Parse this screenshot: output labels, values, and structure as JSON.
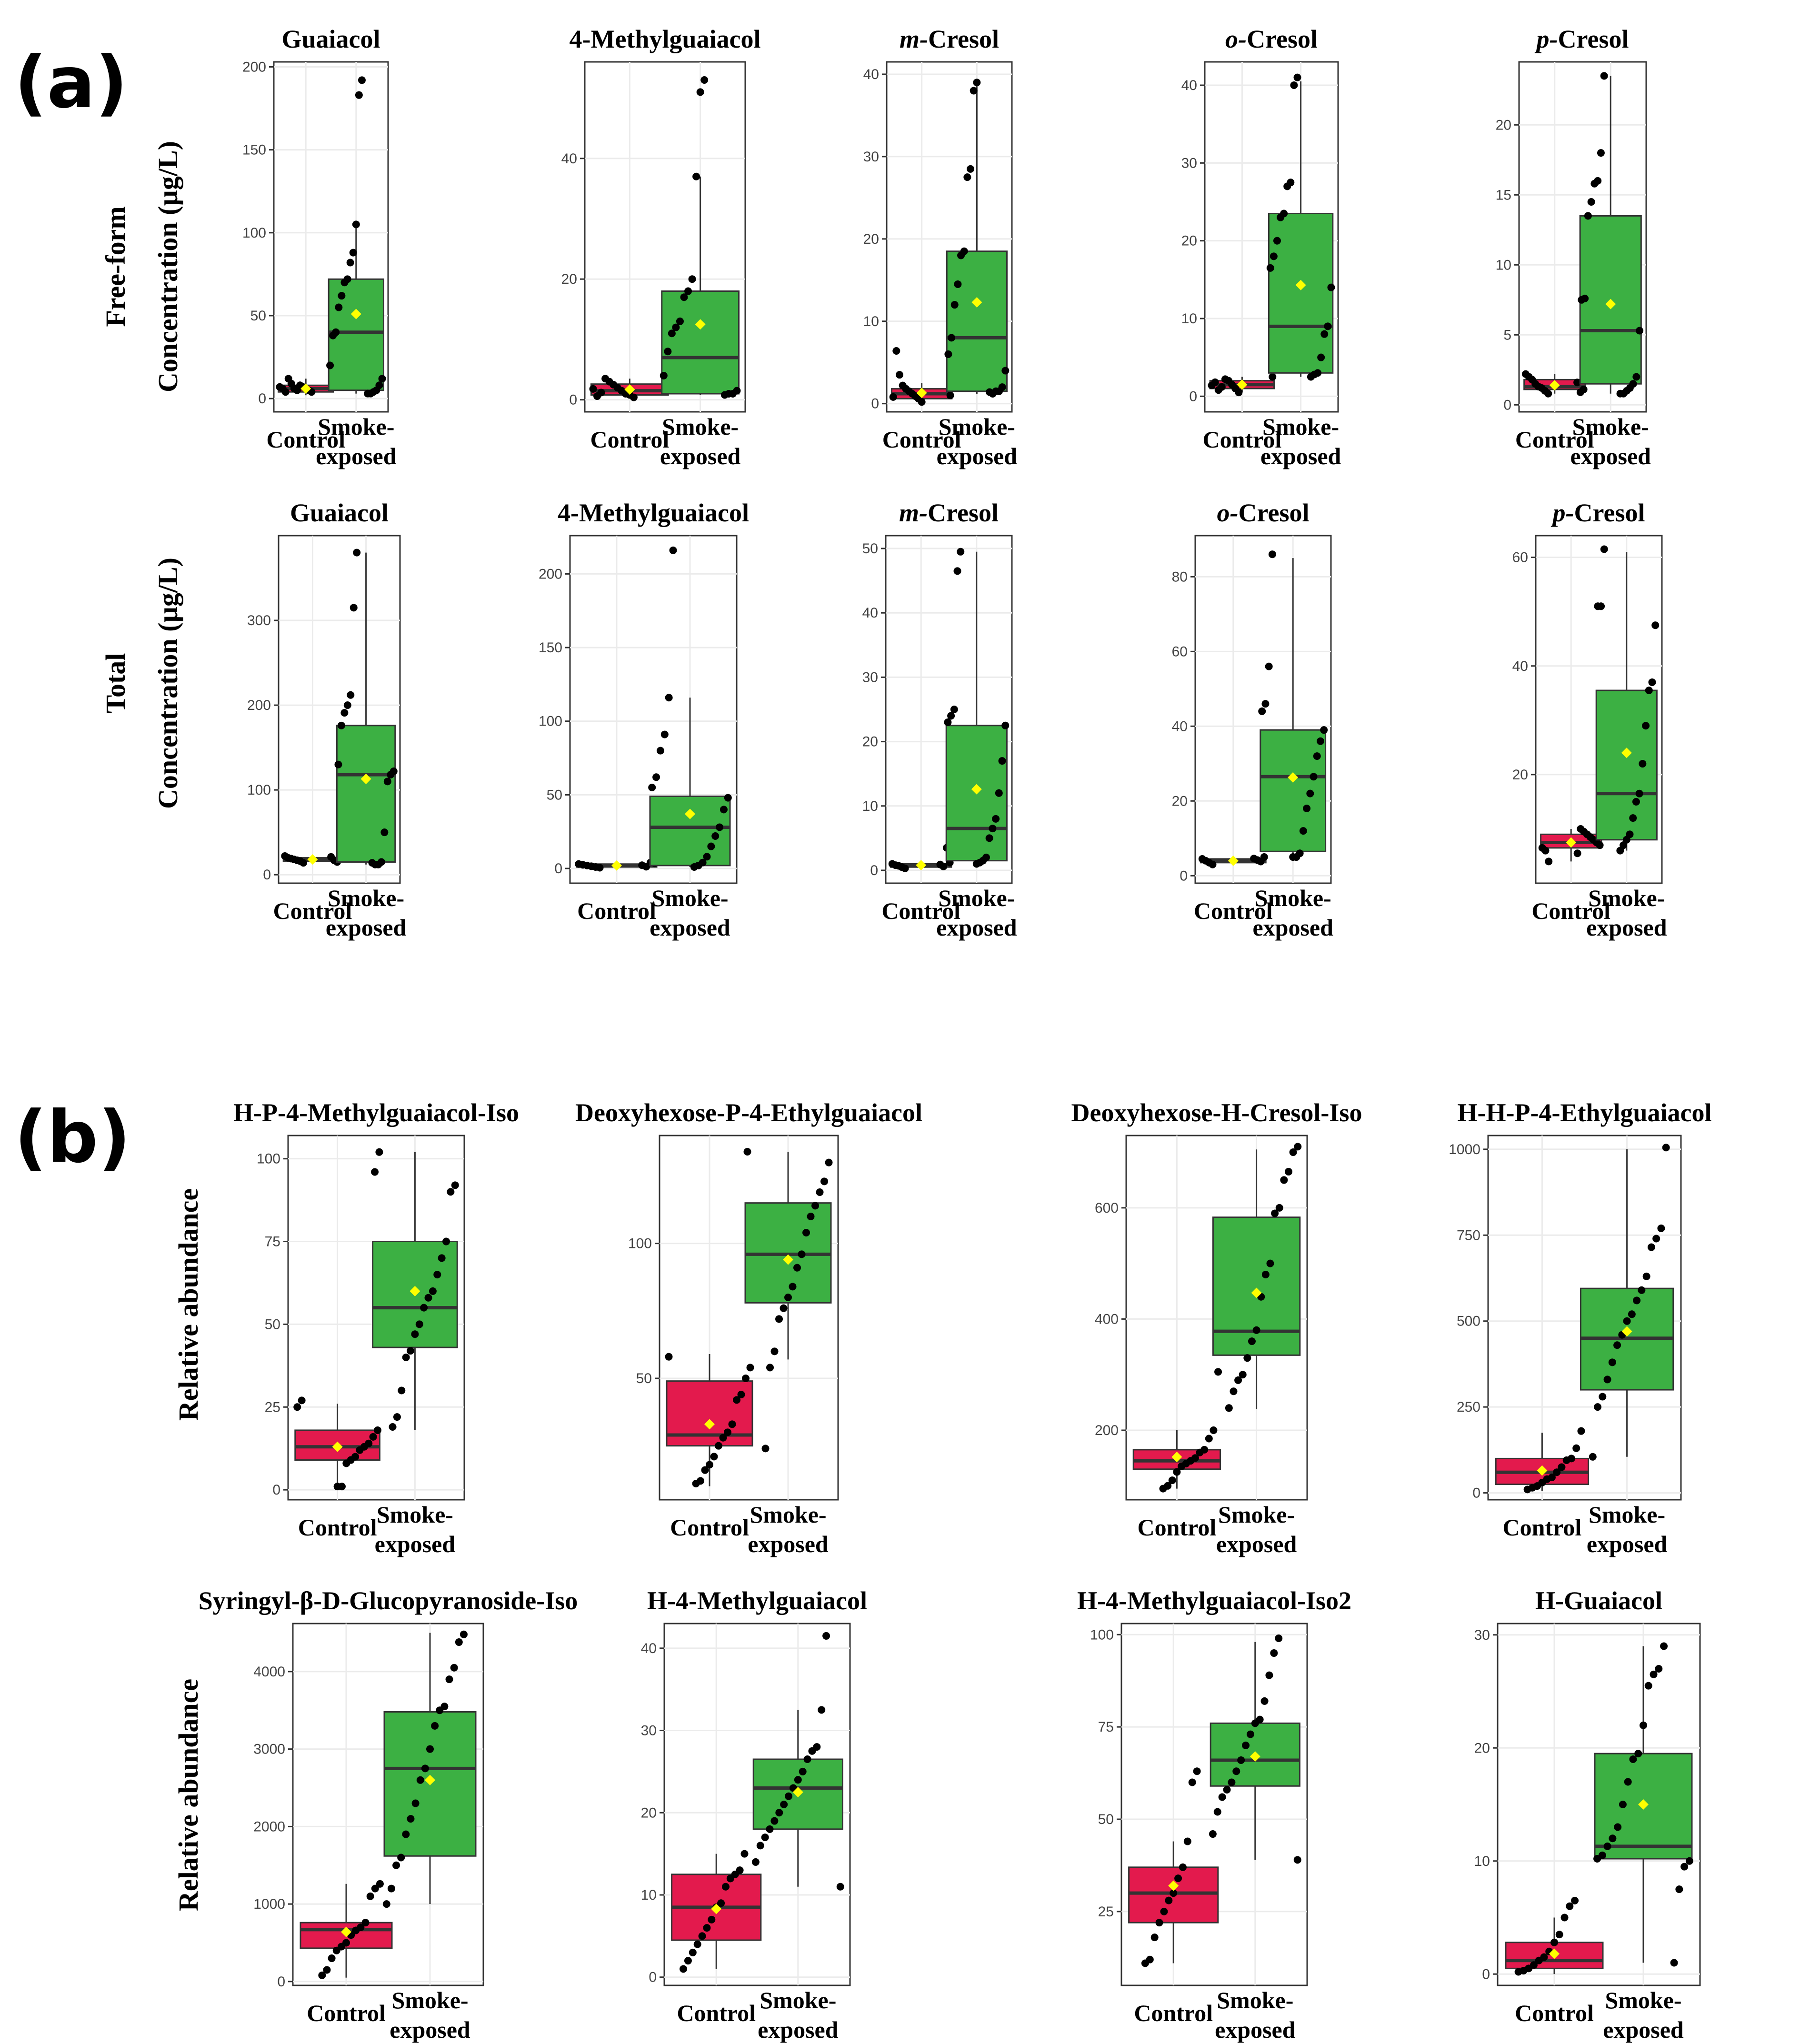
{
  "panels": [
    {
      "label": "(a)"
    },
    {
      "label": "(b)"
    }
  ],
  "row_labels": [
    {
      "line1": "Free-form",
      "line2": "Concentration (µg/L)"
    },
    {
      "line1": "Total",
      "line2": "Concentration (µg/L)"
    },
    {
      "line1": "Relative abundance"
    },
    {
      "line1": "Relative abundance"
    }
  ],
  "group_labels": {
    "control": "Control",
    "smoke_line1": "Smoke-",
    "smoke_line2": "exposed"
  },
  "colors": {
    "control": "#e31a4d",
    "smoke": "#3cb043",
    "mean": "#ffff00",
    "grid": "#ebebeb",
    "point": "#000000"
  },
  "chart_data": [
    {
      "type": "box",
      "panel": "a",
      "title": "Guaiacol",
      "title_prefix": "",
      "yticks": [
        0,
        50,
        100,
        150,
        200
      ],
      "ylim": [
        -8,
        203
      ],
      "control": {
        "q1": 4,
        "median": 6,
        "q3": 8,
        "whisker_low": 2,
        "whisker_high": 12,
        "mean": 6,
        "points": [
          4,
          5,
          6,
          7,
          8,
          5,
          6,
          9,
          12,
          4,
          6,
          7
        ]
      },
      "smoke": {
        "q1": 5,
        "median": 40,
        "q3": 72,
        "whisker_low": 3,
        "whisker_high": 105,
        "mean": 51,
        "points": [
          192,
          183,
          105,
          88,
          82,
          72,
          70,
          62,
          55,
          40,
          38,
          20,
          12,
          8,
          5,
          4,
          3,
          3
        ]
      }
    },
    {
      "type": "box",
      "panel": "a",
      "title": "4-Methylguaiacol",
      "title_prefix": "",
      "yticks": [
        0,
        20,
        40
      ],
      "ylim": [
        -2,
        56
      ],
      "control": {
        "q1": 0.8,
        "median": 1.5,
        "q3": 2.6,
        "whisker_low": 0.4,
        "whisker_high": 3.5,
        "mean": 1.7,
        "points": [
          0.4,
          0.8,
          1.0,
          1.5,
          2.0,
          2.5,
          3.0,
          3.5,
          1.2,
          0.6,
          1.8
        ]
      },
      "smoke": {
        "q1": 1,
        "median": 7,
        "q3": 18,
        "whisker_low": 0.8,
        "whisker_high": 37,
        "mean": 12.5,
        "points": [
          53,
          51,
          37,
          20,
          18,
          17,
          13,
          12,
          11,
          8,
          4,
          1.5,
          1,
          1,
          0.8
        ]
      }
    },
    {
      "type": "box",
      "panel": "a",
      "title": "Cresol",
      "title_prefix": "m-",
      "yticks": [
        0,
        10,
        20,
        30,
        40
      ],
      "ylim": [
        -1,
        41.5
      ],
      "control": {
        "q1": 0.6,
        "median": 1.2,
        "q3": 1.8,
        "whisker_low": 0.2,
        "whisker_high": 2.5,
        "mean": 1.3,
        "points": [
          0.2,
          0.6,
          0.9,
          1.2,
          1.5,
          1.8,
          2.2,
          3.5,
          6.4,
          0.8,
          1.0
        ]
      },
      "smoke": {
        "q1": 1.5,
        "median": 8,
        "q3": 18.5,
        "whisker_low": 1.2,
        "whisker_high": 39,
        "mean": 12.3,
        "points": [
          39,
          38,
          28.5,
          27.5,
          18.5,
          18,
          14.5,
          12,
          8,
          6,
          4,
          2,
          1.5,
          1.5,
          1.2,
          1.4
        ]
      }
    },
    {
      "type": "box",
      "panel": "a",
      "title": "Cresol",
      "title_prefix": "o-",
      "yticks": [
        0,
        10,
        20,
        30,
        40
      ],
      "ylim": [
        -2,
        43
      ],
      "control": {
        "q1": 1,
        "median": 1.5,
        "q3": 2,
        "whisker_low": 0.5,
        "whisker_high": 2.5,
        "mean": 1.5,
        "points": [
          0.5,
          1.0,
          1.5,
          2.0,
          2.2,
          1.2,
          0.8,
          1.8,
          1.4,
          2.5
        ]
      },
      "smoke": {
        "q1": 3,
        "median": 9,
        "q3": 23.5,
        "whisker_low": 2.5,
        "whisker_high": 40.5,
        "mean": 14.3,
        "points": [
          41,
          40,
          27.5,
          27,
          23.5,
          23,
          20,
          18,
          16.5,
          14,
          9,
          8,
          5,
          3,
          2.8,
          2.5
        ]
      }
    },
    {
      "type": "box",
      "panel": "a",
      "title": "Cresol",
      "title_prefix": "p-",
      "yticks": [
        0,
        5,
        10,
        15,
        20
      ],
      "ylim": [
        -0.5,
        24.5
      ],
      "control": {
        "q1": 1.1,
        "median": 1.3,
        "q3": 1.8,
        "whisker_low": 0.8,
        "whisker_high": 2.2,
        "mean": 1.4,
        "points": [
          0.8,
          1.0,
          1.2,
          1.3,
          1.5,
          1.8,
          2.0,
          2.2,
          1.1,
          0.9,
          1.6
        ]
      },
      "smoke": {
        "q1": 1.5,
        "median": 5.3,
        "q3": 13.5,
        "whisker_low": 0.8,
        "whisker_high": 23.5,
        "mean": 7.2,
        "points": [
          23.5,
          18,
          16,
          15.8,
          14.5,
          13.5,
          7.6,
          7.5,
          5.3,
          2,
          1.5,
          1.2,
          1,
          0.8,
          0.8
        ]
      }
    },
    {
      "type": "box",
      "panel": "a",
      "title": "Guaiacol",
      "title_prefix": "",
      "yticks": [
        0,
        100,
        200,
        300
      ],
      "ylim": [
        -10,
        400
      ],
      "control": {
        "q1": 16,
        "median": 18,
        "q3": 20,
        "whisker_low": 14,
        "whisker_high": 23,
        "mean": 18,
        "points": [
          14,
          16,
          17,
          18,
          19,
          20,
          22,
          23,
          15,
          17,
          21
        ]
      },
      "smoke": {
        "q1": 15,
        "median": 118,
        "q3": 176,
        "whisker_low": 12,
        "whisker_high": 380,
        "mean": 113,
        "points": [
          380,
          315,
          212,
          200,
          191,
          176,
          130,
          122,
          118,
          110,
          50,
          15,
          12,
          12,
          14
        ]
      }
    },
    {
      "type": "box",
      "panel": "a",
      "title": "4-Methylguaiacol",
      "title_prefix": "",
      "yticks": [
        0,
        50,
        100,
        150,
        200
      ],
      "ylim": [
        -10,
        226
      ],
      "control": {
        "q1": 1,
        "median": 2,
        "q3": 3,
        "whisker_low": 0.5,
        "whisker_high": 4,
        "mean": 2,
        "points": [
          0.5,
          1,
          1.5,
          2,
          2.5,
          3,
          3.5,
          4,
          1.2,
          2.2
        ]
      },
      "smoke": {
        "q1": 2,
        "median": 28,
        "q3": 49,
        "whisker_low": 1,
        "whisker_high": 116,
        "mean": 37,
        "points": [
          216,
          116,
          91,
          80,
          62,
          55,
          48,
          40,
          28,
          22,
          15,
          8,
          4,
          2,
          1
        ]
      }
    },
    {
      "type": "box",
      "panel": "a",
      "title": "Cresol",
      "title_prefix": "m-",
      "yticks": [
        0,
        10,
        20,
        30,
        40,
        50
      ],
      "ylim": [
        -2,
        52
      ],
      "control": {
        "q1": 0.5,
        "median": 0.8,
        "q3": 1,
        "whisker_low": 0.3,
        "whisker_high": 1.2,
        "mean": 0.8,
        "points": [
          0.3,
          0.5,
          0.7,
          0.8,
          1.0,
          1.2,
          3.5,
          0.6,
          0.9
        ]
      },
      "smoke": {
        "q1": 1.5,
        "median": 6.5,
        "q3": 22.5,
        "whisker_low": 1,
        "whisker_high": 49.5,
        "mean": 12.6,
        "points": [
          49.5,
          46.5,
          25,
          24,
          23,
          22.5,
          17,
          12,
          8,
          6.5,
          5,
          2,
          1.5,
          1.2,
          1
        ]
      }
    },
    {
      "type": "box",
      "panel": "a",
      "title": "Cresol",
      "title_prefix": "o-",
      "yticks": [
        0,
        20,
        40,
        60,
        80
      ],
      "ylim": [
        -2,
        91
      ],
      "control": {
        "q1": 3.5,
        "median": 4,
        "q3": 4.5,
        "whisker_low": 3,
        "whisker_high": 5,
        "mean": 4,
        "points": [
          3,
          3.5,
          4,
          4.5,
          5,
          3.8,
          4.2,
          4.6
        ]
      },
      "smoke": {
        "q1": 6.5,
        "median": 26.5,
        "q3": 39,
        "whisker_low": 5,
        "whisker_high": 85,
        "mean": 26.3,
        "points": [
          86,
          56,
          46,
          44,
          39,
          36,
          32,
          26.5,
          22,
          18,
          12,
          6,
          5,
          5
        ]
      }
    },
    {
      "type": "box",
      "panel": "a",
      "title": "Cresol",
      "title_prefix": "p-",
      "yticks": [
        20,
        40,
        60
      ],
      "ylim": [
        0,
        64
      ],
      "control": {
        "q1": 6.5,
        "median": 7.5,
        "q3": 9,
        "whisker_low": 4,
        "whisker_high": 10,
        "mean": 7.5,
        "points": [
          4,
          6,
          6.5,
          7,
          7.5,
          8,
          8.5,
          9,
          9.5,
          10,
          5.5
        ]
      },
      "smoke": {
        "q1": 8,
        "median": 16.5,
        "q3": 35.5,
        "whisker_low": 6,
        "whisker_high": 61,
        "mean": 24,
        "points": [
          61.5,
          51,
          51,
          47.5,
          37,
          35.5,
          29,
          22,
          16.5,
          15,
          12,
          9,
          8,
          7,
          6
        ]
      }
    },
    {
      "type": "box",
      "panel": "b",
      "title": "H-P-4-Methylguaiacol-Iso",
      "title_prefix": "",
      "yticks": [
        0,
        25,
        50,
        75,
        100
      ],
      "ylim": [
        -3,
        107
      ],
      "control": {
        "q1": 9,
        "median": 13,
        "q3": 18,
        "whisker_low": 1,
        "whisker_high": 26,
        "mean": 13,
        "points": [
          27,
          25,
          18,
          16,
          14,
          13,
          12,
          10,
          9,
          8,
          1,
          1
        ]
      },
      "smoke": {
        "q1": 43,
        "median": 55,
        "q3": 75,
        "whisker_low": 18,
        "whisker_high": 102,
        "mean": 60,
        "points": [
          102,
          96,
          92,
          90,
          75,
          70,
          65,
          60,
          58,
          55,
          50,
          47,
          42,
          40,
          30,
          22,
          19
        ]
      }
    },
    {
      "type": "box",
      "panel": "b",
      "title": "Deoxyhexose-P-4-Ethylguaiacol",
      "title_prefix": "",
      "yticks": [
        50,
        100
      ],
      "ylim": [
        5,
        140
      ],
      "control": {
        "q1": 25,
        "median": 29,
        "q3": 49,
        "whisker_low": 10,
        "whisker_high": 59,
        "mean": 33,
        "points": [
          58,
          54,
          50,
          44,
          42,
          33,
          30,
          28,
          25,
          21,
          18,
          16,
          12,
          11
        ]
      },
      "smoke": {
        "q1": 78,
        "median": 96,
        "q3": 115,
        "whisker_low": 57,
        "whisker_high": 134,
        "mean": 94,
        "points": [
          134,
          130,
          123,
          119,
          114,
          110,
          104,
          96,
          91,
          84,
          80,
          76,
          72,
          60,
          54,
          24
        ]
      }
    },
    {
      "type": "box",
      "panel": "b",
      "title": "Deoxyhexose-H-Cresol-Iso",
      "title_prefix": "",
      "yticks": [
        200,
        400,
        600
      ],
      "ylim": [
        75,
        730
      ],
      "control": {
        "q1": 130,
        "median": 145,
        "q3": 165,
        "whisker_low": 95,
        "whisker_high": 200,
        "mean": 152,
        "points": [
          305,
          200,
          185,
          165,
          160,
          150,
          145,
          140,
          135,
          125,
          110,
          100,
          95
        ]
      },
      "smoke": {
        "q1": 335,
        "median": 378,
        "q3": 583,
        "whisker_low": 238,
        "whisker_high": 705,
        "mean": 447,
        "points": [
          710,
          700,
          665,
          650,
          600,
          590,
          500,
          480,
          440,
          380,
          360,
          330,
          300,
          290,
          270,
          240
        ]
      }
    },
    {
      "type": "box",
      "panel": "b",
      "title": "H-H-P-4-Ethylguaiacol",
      "title_prefix": "",
      "yticks": [
        0,
        250,
        500,
        750,
        1000
      ],
      "ylim": [
        -20,
        1040
      ],
      "control": {
        "q1": 25,
        "median": 60,
        "q3": 100,
        "whisker_low": 5,
        "whisker_high": 175,
        "mean": 65,
        "points": [
          180,
          130,
          100,
          95,
          75,
          60,
          45,
          40,
          30,
          20,
          15,
          10
        ]
      },
      "smoke": {
        "q1": 300,
        "median": 450,
        "q3": 595,
        "whisker_low": 105,
        "whisker_high": 1000,
        "mean": 470,
        "points": [
          1005,
          770,
          740,
          715,
          630,
          590,
          560,
          520,
          500,
          460,
          430,
          380,
          330,
          280,
          250,
          105
        ]
      }
    },
    {
      "type": "box",
      "panel": "b",
      "title": "Syringyl-β-D-Glucopyranoside-Iso",
      "title_prefix": "",
      "yticks": [
        0,
        1000,
        2000,
        3000,
        4000
      ],
      "ylim": [
        -50,
        4620
      ],
      "control": {
        "q1": 430,
        "median": 670,
        "q3": 760,
        "whisker_low": 50,
        "whisker_high": 1260,
        "mean": 640,
        "points": [
          1260,
          1200,
          1100,
          760,
          700,
          660,
          600,
          500,
          450,
          400,
          300,
          150,
          80
        ]
      },
      "smoke": {
        "q1": 1620,
        "median": 2750,
        "q3": 3480,
        "whisker_low": 1000,
        "whisker_high": 4500,
        "mean": 2600,
        "points": [
          4480,
          4380,
          4050,
          3900,
          3550,
          3500,
          3300,
          3000,
          2750,
          2600,
          2300,
          2100,
          1900,
          1600,
          1500,
          1200,
          1000
        ]
      }
    },
    {
      "type": "box",
      "panel": "b",
      "title": "H-4-Methylguaiacol",
      "title_prefix": "",
      "yticks": [
        0,
        10,
        20,
        30,
        40
      ],
      "ylim": [
        -1,
        43
      ],
      "control": {
        "q1": 4.5,
        "median": 8.5,
        "q3": 12.5,
        "whisker_low": 1,
        "whisker_high": 15,
        "mean": 8.3,
        "points": [
          15,
          13,
          12.5,
          12,
          11,
          9,
          8.5,
          7,
          6,
          5,
          4,
          3,
          2,
          1
        ]
      },
      "smoke": {
        "q1": 18,
        "median": 23,
        "q3": 26.5,
        "whisker_low": 11,
        "whisker_high": 32.5,
        "mean": 22.5,
        "points": [
          41.5,
          32.5,
          28,
          27.5,
          26.5,
          25,
          24,
          23,
          22,
          21,
          20,
          19,
          18,
          17,
          16,
          14,
          11
        ]
      }
    },
    {
      "type": "box",
      "panel": "b",
      "title": "H-4-Methylguaiacol-Iso2",
      "title_prefix": "",
      "yticks": [
        25,
        50,
        75,
        100
      ],
      "ylim": [
        5,
        103
      ],
      "control": {
        "q1": 22,
        "median": 30,
        "q3": 37,
        "whisker_low": 11,
        "whisker_high": 44,
        "mean": 32,
        "points": [
          63,
          60,
          44,
          37,
          34,
          30,
          28,
          25,
          22,
          18,
          12,
          11
        ]
      },
      "smoke": {
        "q1": 59,
        "median": 66,
        "q3": 76,
        "whisker_low": 39,
        "whisker_high": 98,
        "mean": 67,
        "points": [
          99,
          95,
          89,
          82,
          77,
          76,
          73,
          70,
          66,
          63,
          60,
          58,
          56,
          52,
          46,
          39
        ]
      }
    },
    {
      "type": "box",
      "panel": "b",
      "title": "H-Guaiacol",
      "title_prefix": "",
      "yticks": [
        0,
        10,
        20,
        30
      ],
      "ylim": [
        -1,
        31
      ],
      "control": {
        "q1": 0.5,
        "median": 1.2,
        "q3": 2.8,
        "whisker_low": 0,
        "whisker_high": 5,
        "mean": 1.8,
        "points": [
          6.5,
          6,
          5,
          3.5,
          2.8,
          2,
          1.5,
          1.2,
          0.8,
          0.5,
          0.3,
          0.2
        ]
      },
      "smoke": {
        "q1": 10.2,
        "median": 11.3,
        "q3": 19.5,
        "whisker_low": 1,
        "whisker_high": 29,
        "mean": 15,
        "points": [
          29,
          27,
          26.5,
          25.5,
          22,
          19.5,
          19,
          17,
          15,
          13,
          12,
          11.3,
          10.5,
          10.2,
          10,
          9.5,
          7.5,
          1
        ]
      }
    }
  ]
}
